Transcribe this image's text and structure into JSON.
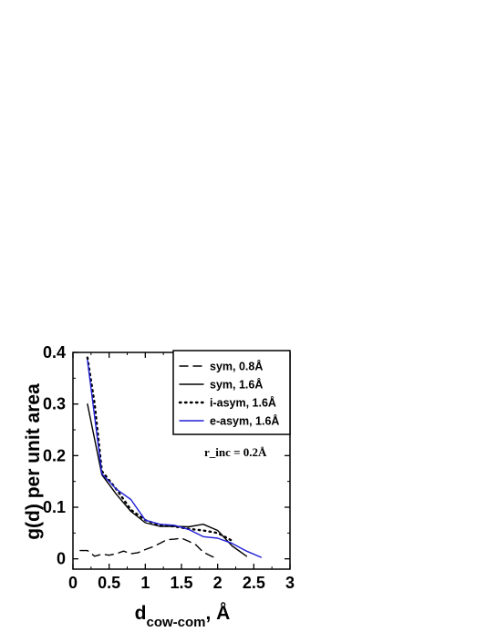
{
  "chart_data": {
    "type": "line",
    "xlabel_main": "d",
    "xlabel_sub": "cow-com",
    "xlabel_unit": ", Å",
    "ylabel": "g(d) per unit area",
    "xlim": [
      0,
      3
    ],
    "ylim": [
      -0.02,
      0.4
    ],
    "xticks": [
      "0",
      "0.5",
      "1",
      "1.5",
      "2",
      "2.5",
      "3"
    ],
    "yticks": [
      "0",
      "0.1",
      "0.2",
      "0.3",
      "0.4"
    ],
    "annotation": "r_inc = 0.2Å",
    "legend_position": "top-right",
    "series": [
      {
        "name": "sym, 0.8Å",
        "style": "dashed",
        "color": "#000000",
        "x": [
          0.1,
          0.2,
          0.3,
          0.4,
          0.5,
          0.6,
          0.7,
          0.8,
          0.9,
          1.0,
          1.1,
          1.2,
          1.3,
          1.4,
          1.5,
          1.6,
          1.7,
          1.8,
          1.9,
          2.0
        ],
        "y": [
          0.016,
          0.016,
          0.005,
          0.009,
          0.007,
          0.01,
          0.015,
          0.01,
          0.012,
          0.018,
          0.023,
          0.03,
          0.037,
          0.038,
          0.04,
          0.034,
          0.027,
          0.013,
          0.006,
          0.0
        ]
      },
      {
        "name": "sym, 1.6Å",
        "style": "solid",
        "color": "#000000",
        "x": [
          0.2,
          0.4,
          0.6,
          0.8,
          1.0,
          1.2,
          1.4,
          1.6,
          1.8,
          2.0,
          2.2,
          2.4
        ],
        "y": [
          0.3,
          0.163,
          0.125,
          0.092,
          0.07,
          0.063,
          0.063,
          0.062,
          0.067,
          0.055,
          0.025,
          0.005
        ]
      },
      {
        "name": "i-asym, 1.6Å",
        "style": "dotted",
        "color": "#000000",
        "x": [
          0.2,
          0.3,
          0.4,
          0.6,
          0.8,
          1.0,
          1.2,
          1.4,
          1.6,
          1.8,
          2.0,
          2.2
        ],
        "y": [
          0.39,
          0.3,
          0.17,
          0.135,
          0.095,
          0.075,
          0.065,
          0.063,
          0.058,
          0.055,
          0.05,
          0.035
        ]
      },
      {
        "name": "e-asym, 1.6Å",
        "style": "solid",
        "color": "#1f1fd8",
        "x": [
          0.2,
          0.4,
          0.6,
          0.8,
          1.0,
          1.2,
          1.4,
          1.6,
          1.8,
          2.0,
          2.2,
          2.4,
          2.6
        ],
        "y": [
          0.385,
          0.165,
          0.135,
          0.115,
          0.075,
          0.067,
          0.065,
          0.057,
          0.043,
          0.04,
          0.03,
          0.015,
          0.003
        ]
      }
    ]
  }
}
